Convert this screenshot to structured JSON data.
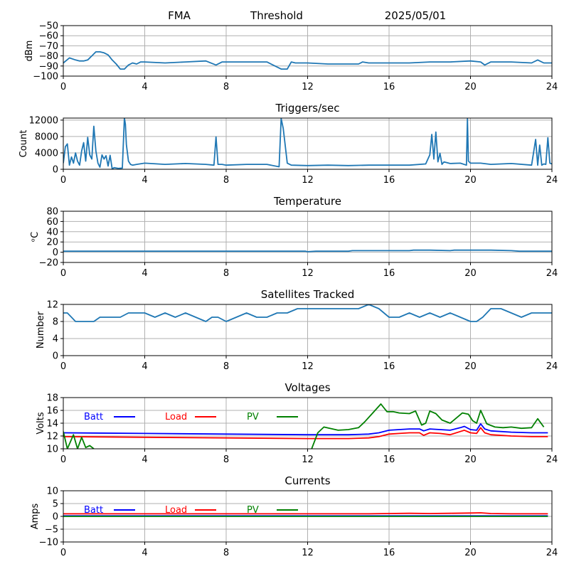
{
  "header": {
    "station": "FMA",
    "mode": "Threshold",
    "date": "2025/05/01"
  },
  "chart_data": [
    {
      "id": "signal",
      "type": "line",
      "title": "",
      "xlabel": "",
      "ylabel": "dBm",
      "xlim": [
        0,
        24
      ],
      "ylim": [
        -100,
        -50
      ],
      "xticks": [
        0,
        4,
        8,
        12,
        16,
        20,
        24
      ],
      "yticks": [
        -100,
        -90,
        -80,
        -70,
        -60,
        -50
      ],
      "grid": true,
      "series": [
        {
          "color": "#1f77b4",
          "x": [
            0,
            0.3,
            0.6,
            0.8,
            1.0,
            1.2,
            1.4,
            1.6,
            1.8,
            2.0,
            2.2,
            2.4,
            2.6,
            2.8,
            3.0,
            3.2,
            3.4,
            3.6,
            3.8,
            4.0,
            5,
            6,
            7,
            7.5,
            7.8,
            8,
            9,
            10,
            10.7,
            11,
            11.2,
            11.4,
            12,
            13,
            14,
            14.5,
            14.7,
            15,
            16,
            17,
            18,
            19,
            20,
            20.5,
            20.7,
            21,
            22,
            23,
            23.3,
            23.6,
            24
          ],
          "y": [
            -87,
            -82,
            -84,
            -85,
            -85,
            -84,
            -80,
            -76,
            -76,
            -77,
            -79,
            -84,
            -88,
            -93,
            -93,
            -89,
            -87,
            -88,
            -86,
            -86,
            -87,
            -86,
            -85,
            -89,
            -86,
            -86,
            -86,
            -86,
            -93,
            -93,
            -86,
            -87,
            -87,
            -88,
            -88,
            -88,
            -86,
            -87,
            -87,
            -87,
            -86,
            -86,
            -85,
            -86,
            -89,
            -86,
            -86,
            -87,
            -84,
            -87,
            -87
          ]
        }
      ]
    },
    {
      "id": "triggers",
      "type": "line",
      "title": "Triggers/sec",
      "xlabel": "",
      "ylabel": "Count",
      "xlim": [
        0,
        24
      ],
      "ylim": [
        0,
        12500
      ],
      "xticks": [
        0,
        4,
        8,
        12,
        16,
        20,
        24
      ],
      "yticks": [
        0,
        4000,
        8000,
        12000
      ],
      "grid": true,
      "series": [
        {
          "color": "#1f77b4",
          "x": [
            0,
            0.1,
            0.2,
            0.3,
            0.4,
            0.5,
            0.6,
            0.7,
            0.8,
            0.9,
            1.0,
            1.1,
            1.2,
            1.3,
            1.4,
            1.5,
            1.6,
            1.7,
            1.8,
            1.9,
            2.0,
            2.1,
            2.2,
            2.3,
            2.4,
            2.5,
            2.7,
            2.9,
            3.0,
            3.05,
            3.1,
            3.2,
            3.3,
            3.4,
            3.6,
            4.0,
            5,
            6,
            7,
            7.4,
            7.5,
            7.6,
            7.8,
            8,
            9,
            10,
            10.6,
            10.7,
            10.8,
            11.0,
            11.2,
            12,
            13,
            14,
            15,
            16,
            17,
            17.8,
            18.0,
            18.1,
            18.2,
            18.3,
            18.4,
            18.5,
            18.6,
            18.7,
            19,
            19.5,
            19.8,
            19.85,
            19.9,
            20,
            20.5,
            21,
            22,
            23,
            23.2,
            23.3,
            23.4,
            23.5,
            23.6,
            23.7,
            23.8,
            23.9,
            24
          ],
          "y": [
            1500,
            5500,
            6200,
            1000,
            3000,
            1500,
            4000,
            2000,
            1000,
            4500,
            6500,
            2000,
            7800,
            3500,
            2500,
            10500,
            4500,
            1500,
            500,
            3500,
            2500,
            3300,
            800,
            3400,
            100,
            400,
            200,
            300,
            12500,
            11000,
            6000,
            2000,
            1200,
            1000,
            1200,
            1500,
            1200,
            1400,
            1200,
            1000,
            7900,
            1200,
            1200,
            1000,
            1200,
            1200,
            600,
            12400,
            10000,
            1500,
            1000,
            900,
            1000,
            900,
            1000,
            1000,
            1000,
            1300,
            3500,
            8500,
            2500,
            9100,
            1800,
            3900,
            1200,
            1800,
            1400,
            1500,
            1000,
            12300,
            2000,
            1500,
            1500,
            1200,
            1400,
            1000,
            7300,
            1000,
            5900,
            1000,
            1300,
            1200,
            7700,
            1500,
            1300
          ]
        }
      ]
    },
    {
      "id": "temperature",
      "type": "line",
      "title": "Temperature",
      "xlabel": "",
      "ylabel": "ᵒC",
      "xlim": [
        0,
        24
      ],
      "ylim": [
        -20,
        80
      ],
      "xticks": [
        0,
        4,
        8,
        12,
        16,
        20,
        24
      ],
      "yticks": [
        -20,
        0,
        20,
        40,
        60,
        80
      ],
      "grid": true,
      "series": [
        {
          "color": "#1f77b4",
          "x": [
            0,
            2,
            4,
            6,
            8,
            10,
            11.9,
            12,
            12.4,
            14,
            14.2,
            16,
            17,
            17.2,
            18,
            19,
            19.2,
            20,
            21,
            22,
            22.4,
            24
          ],
          "y": [
            2,
            2,
            2,
            2,
            2,
            2,
            2,
            1,
            2,
            2,
            3,
            3,
            3,
            4,
            4,
            3,
            4,
            4,
            4,
            3,
            2,
            2
          ]
        }
      ]
    },
    {
      "id": "satellites",
      "type": "line",
      "title": "Satellites Tracked",
      "xlabel": "",
      "ylabel": "Number",
      "xlim": [
        0,
        24
      ],
      "ylim": [
        0,
        12
      ],
      "xticks": [
        0,
        4,
        8,
        12,
        16,
        20,
        24
      ],
      "yticks": [
        0,
        4,
        8,
        12
      ],
      "grid": true,
      "series": [
        {
          "color": "#1f77b4",
          "x": [
            0,
            0.2,
            0.4,
            0.6,
            1.0,
            1.5,
            1.8,
            2.5,
            2.8,
            3.2,
            4.0,
            4.5,
            5.0,
            5.5,
            6.0,
            6.5,
            7.0,
            7.3,
            7.6,
            8.0,
            8.5,
            9.0,
            9.5,
            10.0,
            10.5,
            11.0,
            11.5,
            12.0,
            12.5,
            13.0,
            13.5,
            14.0,
            14.5,
            15.0,
            15.5,
            16.0,
            16.5,
            17.0,
            17.5,
            18.0,
            18.5,
            19.0,
            19.5,
            20.0,
            20.3,
            20.6,
            21.0,
            21.5,
            22.0,
            22.5,
            23.0,
            23.5,
            24
          ],
          "y": [
            10,
            10,
            9,
            8,
            8,
            8,
            9,
            9,
            9,
            10,
            10,
            9,
            10,
            9,
            10,
            9,
            8,
            9,
            9,
            8,
            9,
            10,
            9,
            9,
            10,
            10,
            11,
            11,
            11,
            11,
            11,
            11,
            11,
            12,
            11,
            9,
            9,
            10,
            9,
            10,
            9,
            10,
            9,
            8,
            8,
            9,
            11,
            11,
            10,
            9,
            10,
            10,
            10
          ]
        }
      ]
    },
    {
      "id": "voltages",
      "type": "line",
      "title": "Voltages",
      "xlabel": "",
      "ylabel": "Volts",
      "xlim": [
        0,
        24
      ],
      "ylim": [
        10,
        18
      ],
      "xticks": [
        0,
        4,
        8,
        12,
        16,
        20,
        24
      ],
      "yticks": [
        10,
        12,
        14,
        16,
        18
      ],
      "grid": true,
      "legend": [
        "Batt",
        "Load",
        "PV"
      ],
      "series": [
        {
          "name": "Batt",
          "color": "#0000ff",
          "x": [
            0,
            4,
            8,
            12,
            14,
            15,
            15.5,
            16,
            16.5,
            17,
            17.5,
            17.7,
            18,
            18.5,
            19,
            19.5,
            19.7,
            20,
            20.3,
            20.5,
            20.7,
            21,
            22,
            23,
            23.8
          ],
          "y": [
            12.5,
            12.4,
            12.3,
            12.2,
            12.2,
            12.3,
            12.5,
            12.9,
            13.0,
            13.1,
            13.1,
            12.8,
            13.1,
            13.0,
            12.9,
            13.3,
            13.5,
            13.0,
            12.9,
            13.9,
            13.1,
            12.8,
            12.6,
            12.5,
            12.5
          ]
        },
        {
          "name": "Load",
          "color": "#ff0000",
          "x": [
            0,
            4,
            8,
            12,
            14,
            15,
            15.5,
            16,
            16.5,
            17,
            17.5,
            17.7,
            18,
            18.5,
            19,
            19.5,
            19.7,
            20,
            20.3,
            20.5,
            20.7,
            21,
            22,
            23,
            23.8
          ],
          "y": [
            11.9,
            11.8,
            11.7,
            11.6,
            11.6,
            11.7,
            11.9,
            12.3,
            12.4,
            12.5,
            12.5,
            12.1,
            12.5,
            12.4,
            12.2,
            12.7,
            12.9,
            12.5,
            12.4,
            13.3,
            12.5,
            12.2,
            12.0,
            11.9,
            11.9
          ]
        },
        {
          "name": "PV",
          "color": "#008000",
          "x": [
            0,
            0.2,
            0.5,
            0.7,
            0.9,
            1.1,
            1.3,
            1.5,
            null,
            12.2,
            12.5,
            12.8,
            13.5,
            14,
            14.5,
            14.8,
            15.2,
            15.6,
            15.9,
            16.2,
            16.5,
            17,
            17.3,
            17.6,
            17.8,
            18.0,
            18.3,
            18.6,
            19.0,
            19.3,
            19.6,
            19.9,
            20.1,
            20.3,
            20.5,
            20.8,
            21.2,
            21.6,
            22.0,
            22.5,
            23.0,
            23.3,
            23.6
          ],
          "y": [
            12.7,
            10.0,
            12.2,
            10.0,
            11.8,
            10.2,
            10.5,
            10.0,
            null,
            10.0,
            12.5,
            13.4,
            12.9,
            13.0,
            13.3,
            14.2,
            15.6,
            17.0,
            15.8,
            15.8,
            15.6,
            15.5,
            15.9,
            13.7,
            14.0,
            15.9,
            15.5,
            14.5,
            14.0,
            14.8,
            15.6,
            15.4,
            14.4,
            14.0,
            16.0,
            13.9,
            13.4,
            13.3,
            13.4,
            13.2,
            13.3,
            14.7,
            13.4
          ]
        }
      ]
    },
    {
      "id": "currents",
      "type": "line",
      "title": "Currents",
      "xlabel": "",
      "ylabel": "Amps",
      "xlim": [
        0,
        24
      ],
      "ylim": [
        -10,
        10
      ],
      "xticks": [
        0,
        4,
        8,
        12,
        16,
        20,
        24
      ],
      "yticks": [
        -10,
        -5,
        0,
        5,
        10
      ],
      "grid": true,
      "legend": [
        "Batt",
        "Load",
        "PV"
      ],
      "series": [
        {
          "name": "Batt",
          "color": "#0000ff",
          "x": [
            0,
            23.8
          ],
          "y": [
            0.2,
            0.2
          ]
        },
        {
          "name": "Load",
          "color": "#ff0000",
          "x": [
            0,
            4,
            8,
            12,
            15,
            16,
            17,
            18,
            19,
            20,
            20.5,
            21,
            22,
            23.8
          ],
          "y": [
            1.0,
            1.0,
            1.0,
            1.0,
            1.0,
            1.1,
            1.2,
            1.1,
            1.2,
            1.3,
            1.4,
            1.1,
            1.0,
            1.0
          ]
        },
        {
          "name": "PV",
          "color": "#008000",
          "x": [
            0,
            23.8
          ],
          "y": [
            0,
            0
          ]
        }
      ]
    }
  ]
}
